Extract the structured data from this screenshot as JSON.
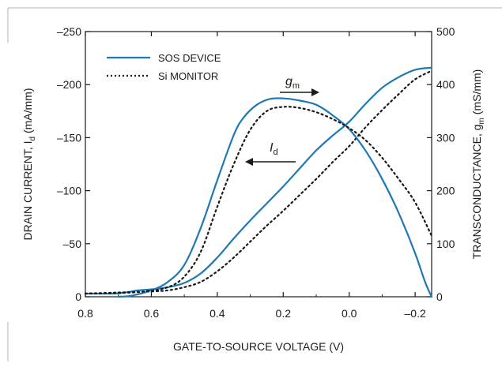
{
  "chart_data": {
    "type": "line",
    "xlabel": "GATE-TO-SOURCE VOLTAGE (V)",
    "ylabel_left_main": "DRAIN CURRENT, I",
    "ylabel_left_sub": "d",
    "ylabel_left_unit": " (mA/mm)",
    "ylabel_right_main": "TRANSCONDUCTANCE, g",
    "ylabel_right_sub": "m",
    "ylabel_right_unit": " (mS/mm)",
    "x_ticks": [
      "0.8",
      "0.6",
      "0.4",
      "0.2",
      "0.0",
      "–0.2"
    ],
    "x_tick_values": [
      0.8,
      0.6,
      0.4,
      0.2,
      0.0,
      -0.2
    ],
    "xlim": [
      0.8,
      -0.25
    ],
    "yleft_ticks": [
      "–250",
      "–200",
      "–150",
      "–100",
      "–50",
      "0"
    ],
    "yleft_tick_values": [
      -250,
      -200,
      -150,
      -100,
      -50,
      0
    ],
    "yleft_lim": [
      0,
      -250
    ],
    "yright_ticks": [
      "500",
      "400",
      "300",
      "200",
      "100",
      "0"
    ],
    "yright_tick_values": [
      500,
      400,
      300,
      200,
      100,
      0
    ],
    "yright_lim": [
      0,
      500
    ],
    "legend": [
      {
        "label": "SOS DEVICE",
        "style": "solid",
        "color": "#1e78b4"
      },
      {
        "label": "Si MONITOR",
        "style": "dotted",
        "color": "#1a1a1a"
      }
    ],
    "annotations": {
      "gm_label": "g",
      "gm_sub": "m",
      "id_label": "I",
      "id_sub": "d"
    },
    "series": [
      {
        "name": "SOS DEVICE",
        "quantity": "I_d",
        "axis": "left",
        "style": "solid",
        "color": "#1e78b4",
        "points": [
          [
            0.8,
            -3
          ],
          [
            0.72,
            -3
          ],
          [
            0.68,
            -4
          ],
          [
            0.64,
            -6
          ],
          [
            0.6,
            -7
          ],
          [
            0.55,
            -9
          ],
          [
            0.5,
            -13
          ],
          [
            0.45,
            -22
          ],
          [
            0.4,
            -37
          ],
          [
            0.35,
            -55
          ],
          [
            0.3,
            -72
          ],
          [
            0.25,
            -88
          ],
          [
            0.2,
            -104
          ],
          [
            0.15,
            -121
          ],
          [
            0.1,
            -138
          ],
          [
            0.05,
            -152
          ],
          [
            0.0,
            -165
          ],
          [
            -0.05,
            -182
          ],
          [
            -0.1,
            -197
          ],
          [
            -0.15,
            -207
          ],
          [
            -0.2,
            -214
          ],
          [
            -0.25,
            -216
          ]
        ]
      },
      {
        "name": "Si MONITOR",
        "quantity": "I_d",
        "axis": "left",
        "style": "dotted",
        "color": "#1a1a1a",
        "points": [
          [
            0.8,
            -3
          ],
          [
            0.7,
            -4
          ],
          [
            0.6,
            -5
          ],
          [
            0.55,
            -6
          ],
          [
            0.5,
            -9
          ],
          [
            0.45,
            -14
          ],
          [
            0.4,
            -24
          ],
          [
            0.35,
            -37
          ],
          [
            0.3,
            -52
          ],
          [
            0.25,
            -67
          ],
          [
            0.2,
            -81
          ],
          [
            0.15,
            -96
          ],
          [
            0.1,
            -111
          ],
          [
            0.05,
            -127
          ],
          [
            0.0,
            -142
          ],
          [
            -0.05,
            -160
          ],
          [
            -0.1,
            -176
          ],
          [
            -0.15,
            -191
          ],
          [
            -0.2,
            -205
          ],
          [
            -0.25,
            -213
          ]
        ]
      },
      {
        "name": "SOS DEVICE",
        "quantity": "g_m",
        "axis": "right",
        "style": "solid",
        "color": "#1e78b4",
        "points": [
          [
            0.7,
            0
          ],
          [
            0.66,
            2
          ],
          [
            0.6,
            12
          ],
          [
            0.55,
            28
          ],
          [
            0.5,
            60
          ],
          [
            0.45,
            130
          ],
          [
            0.4,
            220
          ],
          [
            0.35,
            305
          ],
          [
            0.32,
            338
          ],
          [
            0.28,
            362
          ],
          [
            0.24,
            373
          ],
          [
            0.2,
            374
          ],
          [
            0.16,
            371
          ],
          [
            0.1,
            362
          ],
          [
            0.05,
            342
          ],
          [
            0.0,
            316
          ],
          [
            -0.05,
            275
          ],
          [
            -0.1,
            222
          ],
          [
            -0.15,
            158
          ],
          [
            -0.2,
            82
          ],
          [
            -0.23,
            28
          ],
          [
            -0.25,
            0
          ]
        ]
      },
      {
        "name": "Si MONITOR",
        "quantity": "g_m",
        "axis": "right",
        "style": "dotted",
        "color": "#1a1a1a",
        "points": [
          [
            0.8,
            6
          ],
          [
            0.7,
            7
          ],
          [
            0.62,
            10
          ],
          [
            0.55,
            18
          ],
          [
            0.5,
            38
          ],
          [
            0.45,
            85
          ],
          [
            0.4,
            170
          ],
          [
            0.35,
            250
          ],
          [
            0.3,
            315
          ],
          [
            0.25,
            350
          ],
          [
            0.2,
            358
          ],
          [
            0.15,
            356
          ],
          [
            0.1,
            348
          ],
          [
            0.05,
            335
          ],
          [
            0.0,
            318
          ],
          [
            -0.05,
            295
          ],
          [
            -0.1,
            262
          ],
          [
            -0.15,
            222
          ],
          [
            -0.2,
            178
          ],
          [
            -0.25,
            115
          ]
        ]
      }
    ]
  }
}
